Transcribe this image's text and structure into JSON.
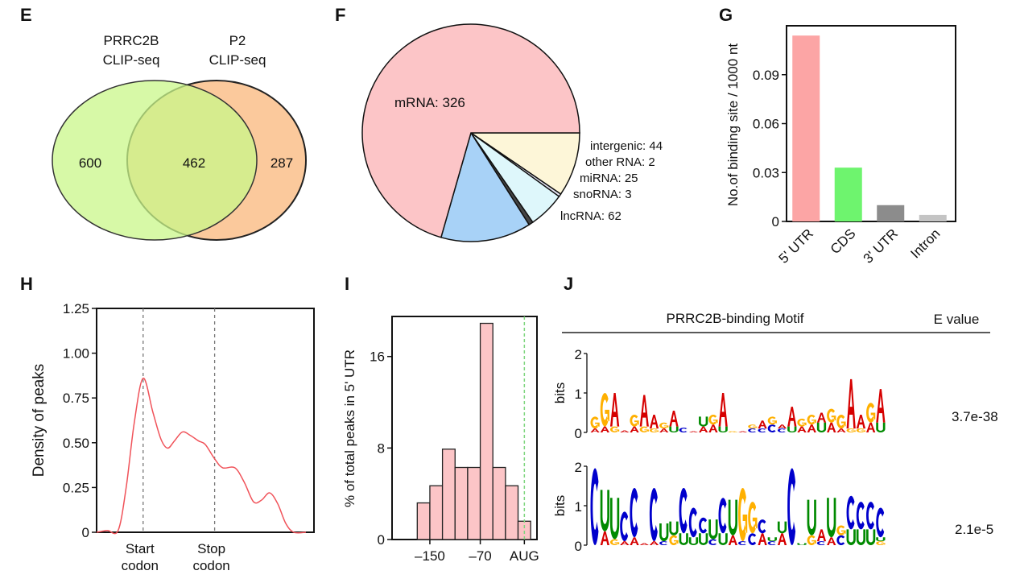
{
  "panels": {
    "E": "E",
    "F": "F",
    "G": "G",
    "H": "H",
    "I": "I",
    "J": "J"
  },
  "chart_data": [
    {
      "id": "E",
      "type": "venn",
      "sets": [
        {
          "name_line1": "PRRC2B",
          "name_line2": "CLIP-seq",
          "color": "#c9f78a"
        },
        {
          "name_line1": "P2",
          "name_line2": "CLIP-seq",
          "color": "#fbc99c"
        }
      ],
      "only_left": "600",
      "overlap": "462",
      "only_right": "287"
    },
    {
      "id": "F",
      "type": "pie",
      "slices": [
        {
          "label": "intergenic: 44",
          "category": "intergenic",
          "value": 44,
          "color": "#fdf6d8"
        },
        {
          "label": "other RNA: 2",
          "category": "other RNA",
          "value": 2,
          "color": "#e4e4f4"
        },
        {
          "label": "miRNA: 25",
          "category": "miRNA",
          "value": 25,
          "color": "#def7fb"
        },
        {
          "label": "snoRNA: 3",
          "category": "snoRNA",
          "value": 3,
          "color": "#444444"
        },
        {
          "label": "lncRNA: 62",
          "category": "lncRNA",
          "value": 62,
          "color": "#a8d2f7"
        },
        {
          "label": "mRNA: 326",
          "category": "mRNA",
          "value": 326,
          "color": "#fcc5c7"
        }
      ]
    },
    {
      "id": "G",
      "type": "bar",
      "categories": [
        "5' UTR",
        "CDS",
        "3' UTR",
        "Intron"
      ],
      "values": [
        0.114,
        0.033,
        0.01,
        0.004
      ],
      "colors": [
        "#fca5a5",
        "#6ef46e",
        "#8c8c8c",
        "#c4c4c4"
      ],
      "ylabel": "No.of binding site / 1000 nt",
      "ylim": [
        0,
        0.12
      ],
      "yticks": [
        0,
        0.03,
        0.06,
        0.09
      ],
      "ytick_labels": [
        "0",
        "0.03",
        "0.06",
        "0.09"
      ]
    },
    {
      "id": "H",
      "type": "line",
      "ylabel": "Density of peaks",
      "ylim": [
        0,
        1.25
      ],
      "xlim": [
        0,
        100
      ],
      "yticks": [
        0,
        0.25,
        0.5,
        0.75,
        1.0,
        1.25
      ],
      "ytick_labels": [
        "0",
        "0.25",
        "0.50",
        "0.75",
        "1.00",
        "1.25"
      ],
      "color": "#f0535a",
      "markers": [
        {
          "x": 21.4,
          "line1": "Start",
          "line2": "codon"
        },
        {
          "x": 54.3,
          "line1": "Stop",
          "line2": "codon"
        }
      ],
      "points": [
        [
          0,
          0
        ],
        [
          4.9,
          0.01
        ],
        [
          9.9,
          0.01
        ],
        [
          13.6,
          0.25
        ],
        [
          17.3,
          0.61
        ],
        [
          21.4,
          0.86
        ],
        [
          25.9,
          0.67
        ],
        [
          29.6,
          0.52
        ],
        [
          32.7,
          0.47
        ],
        [
          35.8,
          0.51
        ],
        [
          39.5,
          0.56
        ],
        [
          43.2,
          0.54
        ],
        [
          46.9,
          0.51
        ],
        [
          50.0,
          0.49
        ],
        [
          54.3,
          0.41
        ],
        [
          58.0,
          0.36
        ],
        [
          63.6,
          0.36
        ],
        [
          67.9,
          0.28
        ],
        [
          72.2,
          0.17
        ],
        [
          75.9,
          0.18
        ],
        [
          79.6,
          0.22
        ],
        [
          83.3,
          0.16
        ],
        [
          87.0,
          0.05
        ],
        [
          90.7,
          0.0
        ],
        [
          96.3,
          0.0
        ]
      ]
    },
    {
      "id": "I",
      "type": "bar",
      "ylabel": "% of total peaks in 5' UTR",
      "bin_edges": [
        -170,
        -150,
        -130,
        -110,
        -90,
        -70,
        -50,
        -30,
        -10,
        10
      ],
      "values": [
        3.2,
        4.7,
        7.9,
        6.3,
        6.3,
        18.9,
        6.3,
        4.7,
        1.6
      ],
      "color": "#fcc5c7",
      "xlim": [
        -210,
        20
      ],
      "ylim": [
        0,
        19.5
      ],
      "yticks": [
        0,
        8,
        16
      ],
      "ytick_labels": [
        "0",
        "8",
        "16"
      ],
      "xticks": [
        -150,
        -70,
        0
      ],
      "xtick_labels": [
        "–150",
        "–70",
        "AUG"
      ],
      "reference_line": {
        "x": 0,
        "color": "#7fd67f"
      }
    },
    {
      "id": "J",
      "type": "sequence-logo",
      "header_motif": "PRRC2B-binding Motif",
      "header_evalue": "E value",
      "ylabel": "bits",
      "ylim": [
        0,
        2
      ],
      "yticks": [
        "0",
        "1",
        "2"
      ],
      "letter_colors": {
        "A": "#d60000",
        "C": "#0000cc",
        "G": "#ffb000",
        "U": "#008a00"
      },
      "motifs": [
        {
          "evalue": "3.7e-38",
          "positions": [
            [
              [
                "A",
                0.1
              ],
              [
                "G",
                0.3
              ]
            ],
            [
              [
                "A",
                0.15
              ],
              [
                "G",
                0.85
              ]
            ],
            [
              [
                "G",
                0.15
              ],
              [
                "A",
                0.85
              ]
            ],
            [
              [
                "A",
                0.05
              ]
            ],
            [
              [
                "A",
                0.15
              ],
              [
                "G",
                0.3
              ]
            ],
            [
              [
                "G",
                0.15
              ],
              [
                "A",
                0.8
              ]
            ],
            [
              [
                "G",
                0.1
              ],
              [
                "A",
                0.35
              ]
            ],
            [
              [
                "A",
                0.1
              ],
              [
                "G",
                0.15
              ]
            ],
            [
              [
                "U",
                0.15
              ],
              [
                "A",
                0.4
              ]
            ],
            [
              [
                "C",
                0.12
              ]
            ],
            [
              [
                "A",
                0.03
              ]
            ],
            [
              [
                "A",
                0.15
              ],
              [
                "U",
                0.25
              ]
            ],
            [
              [
                "A",
                0.2
              ],
              [
                "G",
                0.25
              ]
            ],
            [
              [
                "U",
                0.15
              ],
              [
                "A",
                0.85
              ]
            ],
            [
              [
                "G",
                0.03
              ]
            ],
            [
              [
                "A",
                0.03
              ]
            ],
            [
              [
                "C",
                0.1
              ],
              [
                "G",
                0.1
              ]
            ],
            [
              [
                "C",
                0.1
              ],
              [
                "A",
                0.2
              ]
            ],
            [
              [
                "C",
                0.2
              ],
              [
                "G",
                0.2
              ]
            ],
            [
              [
                "C",
                0.1
              ],
              [
                "A",
                0.1
              ]
            ],
            [
              [
                "U",
                0.15
              ],
              [
                "A",
                0.5
              ]
            ],
            [
              [
                "A",
                0.15
              ],
              [
                "G",
                0.2
              ]
            ],
            [
              [
                "A",
                0.2
              ],
              [
                "G",
                0.25
              ]
            ],
            [
              [
                "U",
                0.25
              ],
              [
                "A",
                0.25
              ]
            ],
            [
              [
                "A",
                0.25
              ],
              [
                "G",
                0.35
              ]
            ],
            [
              [
                "A",
                0.1
              ],
              [
                "G",
                0.35
              ]
            ],
            [
              [
                "G",
                0.1
              ],
              [
                "A",
                1.25
              ]
            ],
            [
              [
                "G",
                0.1
              ],
              [
                "A",
                0.35
              ]
            ],
            [
              [
                "A",
                0.25
              ],
              [
                "G",
                0.5
              ]
            ],
            [
              [
                "U",
                0.25
              ],
              [
                "A",
                0.85
              ]
            ]
          ]
        },
        {
          "evalue": "2.1e-5",
          "positions": [
            [
              [
                "C",
                1.95
              ]
            ],
            [
              [
                "A",
                0.35
              ],
              [
                "U",
                1.05
              ]
            ],
            [
              [
                "G",
                0.15
              ],
              [
                "U",
                1.05
              ]
            ],
            [
              [
                "A",
                0.1
              ],
              [
                "C",
                0.75
              ]
            ],
            [
              [
                "A",
                0.2
              ],
              [
                "C",
                1.25
              ]
            ],
            [
              [
                "A",
                0.05
              ]
            ],
            [
              [
                "A",
                0.1
              ],
              [
                "C",
                1.35
              ]
            ],
            [
              [
                "C",
                0.1
              ],
              [
                "U",
                0.45
              ]
            ],
            [
              [
                "G",
                0.25
              ],
              [
                "U",
                0.35
              ]
            ],
            [
              [
                "U",
                0.3
              ],
              [
                "C",
                1.15
              ]
            ],
            [
              [
                "U",
                0.2
              ],
              [
                "C",
                0.75
              ]
            ],
            [
              [
                "U",
                0.3
              ],
              [
                "C",
                0.4
              ]
            ],
            [
              [
                "C",
                0.15
              ],
              [
                "U",
                0.5
              ]
            ],
            [
              [
                "U",
                0.3
              ],
              [
                "C",
                0.9
              ]
            ],
            [
              [
                "A",
                0.25
              ],
              [
                "U",
                0.9
              ]
            ],
            [
              [
                "C",
                0.1
              ],
              [
                "G",
                1.35
              ]
            ],
            [
              [
                "C",
                0.3
              ],
              [
                "G",
                0.8
              ]
            ],
            [
              [
                "A",
                0.3
              ],
              [
                "C",
                0.35
              ]
            ],
            [
              [
                "C",
                0.1
              ],
              [
                "U",
                0.1
              ]
            ],
            [
              [
                "A",
                0.3
              ],
              [
                "U",
                0.3
              ]
            ],
            [
              [
                "C",
                1.95
              ]
            ],
            [
              [
                "U",
                0.05
              ]
            ],
            [
              [
                "G",
                0.25
              ],
              [
                "U",
                0.9
              ]
            ],
            [
              [
                "C",
                0.1
              ],
              [
                "A",
                0.3
              ]
            ],
            [
              [
                "A",
                0.2
              ],
              [
                "U",
                1.0
              ]
            ],
            [
              [
                "C",
                0.25
              ],
              [
                "G",
                0.25
              ]
            ],
            [
              [
                "U",
                0.4
              ],
              [
                "C",
                0.85
              ]
            ],
            [
              [
                "U",
                0.4
              ],
              [
                "C",
                0.7
              ]
            ],
            [
              [
                "U",
                0.4
              ],
              [
                "C",
                0.7
              ]
            ],
            [
              [
                "G",
                0.1
              ],
              [
                "U",
                0.1
              ],
              [
                "C",
                0.75
              ]
            ]
          ]
        }
      ]
    }
  ]
}
